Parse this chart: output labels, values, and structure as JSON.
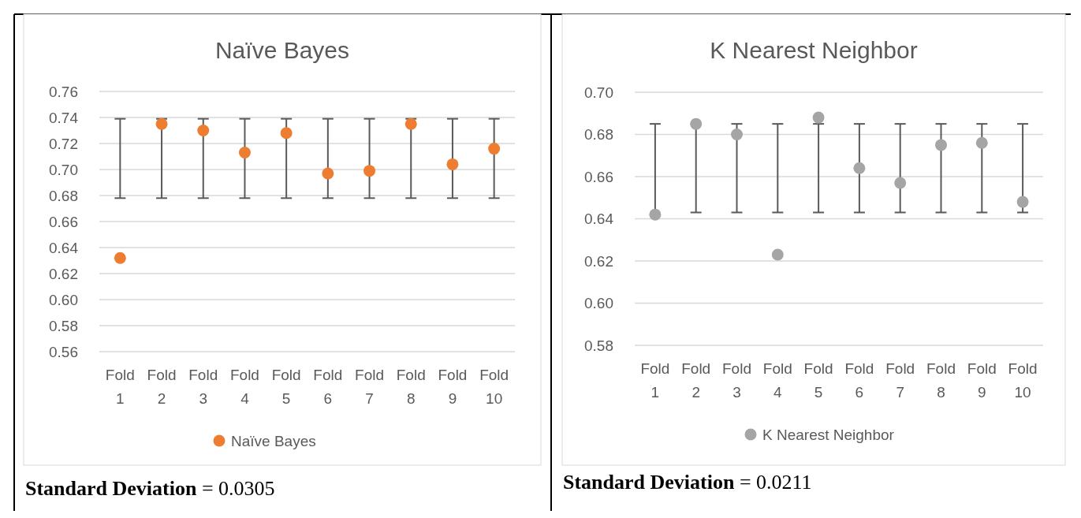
{
  "chart_data": [
    {
      "type": "scatter",
      "title": "Naïve Bayes",
      "categories": [
        "Fold 1",
        "Fold 2",
        "Fold 3",
        "Fold 4",
        "Fold 5",
        "Fold 6",
        "Fold 7",
        "Fold 8",
        "Fold 9",
        "Fold 10"
      ],
      "series": [
        {
          "name": "Naïve Bayes",
          "color": "#ed7d31",
          "values": [
            0.632,
            0.735,
            0.73,
            0.713,
            0.728,
            0.697,
            0.699,
            0.735,
            0.704,
            0.716
          ],
          "errors": [
            [
              0.678,
              0.739
            ],
            [
              0.678,
              0.739
            ],
            [
              0.678,
              0.739
            ],
            [
              0.678,
              0.739
            ],
            [
              0.678,
              0.739
            ],
            [
              0.678,
              0.739
            ],
            [
              0.678,
              0.739
            ],
            [
              0.678,
              0.739
            ],
            [
              0.678,
              0.739
            ],
            [
              0.678,
              0.739
            ]
          ]
        }
      ],
      "ylim": [
        0.56,
        0.76
      ],
      "yticks": [
        {
          "value": 0.56,
          "label": "0.56"
        },
        {
          "value": 0.58,
          "label": "0.58"
        },
        {
          "value": 0.6,
          "label": "0.60"
        },
        {
          "value": 0.62,
          "label": "0.62"
        },
        {
          "value": 0.64,
          "label": "0.64"
        },
        {
          "value": 0.66,
          "label": "0.66"
        },
        {
          "value": 0.68,
          "label": "0.68"
        },
        {
          "value": 0.7,
          "label": "0.70"
        },
        {
          "value": 0.72,
          "label": "0.72"
        },
        {
          "value": 0.74,
          "label": "0.74"
        },
        {
          "value": 0.76,
          "label": "0.76"
        }
      ],
      "grid": "y",
      "legend": "bottom",
      "marker": "circle",
      "annotations": [
        "Standard Deviation = 0.0305"
      ]
    },
    {
      "type": "scatter",
      "title": "K Nearest Neighbor",
      "categories": [
        "Fold 1",
        "Fold 2",
        "Fold 3",
        "Fold 4",
        "Fold 5",
        "Fold 6",
        "Fold 7",
        "Fold 8",
        "Fold 9",
        "Fold 10"
      ],
      "series": [
        {
          "name": "K Nearest Neighbor",
          "color": "#a5a5a5",
          "values": [
            0.642,
            0.685,
            0.68,
            0.623,
            0.688,
            0.664,
            0.657,
            0.675,
            0.676,
            0.648
          ],
          "errors": [
            [
              0.642,
              0.685
            ],
            [
              0.643,
              0.685
            ],
            [
              0.643,
              0.685
            ],
            [
              0.643,
              0.685
            ],
            [
              0.643,
              0.685
            ],
            [
              0.643,
              0.685
            ],
            [
              0.643,
              0.685
            ],
            [
              0.643,
              0.685
            ],
            [
              0.643,
              0.685
            ],
            [
              0.643,
              0.685
            ]
          ]
        }
      ],
      "ylim": [
        0.58,
        0.7
      ],
      "yticks": [
        {
          "value": 0.58,
          "label": "0.58"
        },
        {
          "value": 0.6,
          "label": "0.60"
        },
        {
          "value": 0.62,
          "label": "0.62"
        },
        {
          "value": 0.64,
          "label": "0.64"
        },
        {
          "value": 0.66,
          "label": "0.66"
        },
        {
          "value": 0.68,
          "label": "0.68"
        },
        {
          "value": 0.7,
          "label": "0.70"
        }
      ],
      "grid": "y",
      "legend": "bottom",
      "marker": "circle",
      "annotations": [
        "Standard Deviation = 0.0211"
      ]
    }
  ]
}
